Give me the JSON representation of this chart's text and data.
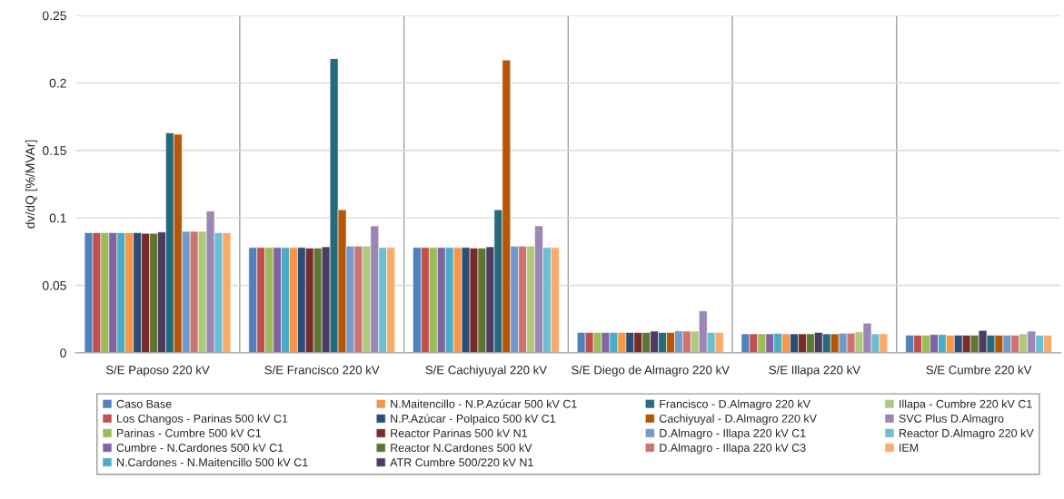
{
  "chart_data": {
    "type": "bar",
    "ylabel": "dv/dQ [%/MVAr]",
    "categories": [
      "S/E Paposo 220 kV",
      "S/E Francisco 220 kV",
      "S/E Cachiyuyal 220 kV",
      "S/E Diego de Almagro 220 kV",
      "S/E Illapa 220 kV",
      "S/E Cumbre 220 kV"
    ],
    "ylim": [
      0,
      0.25
    ],
    "yticks": [
      0,
      0.05,
      0.1,
      0.15,
      0.2,
      0.25
    ],
    "grid": true,
    "legend": "bottom",
    "series": [
      {
        "name": "Caso Base",
        "color": "#4f81bd",
        "values": [
          0.089,
          0.078,
          0.078,
          0.015,
          0.014,
          0.013
        ]
      },
      {
        "name": "Los Changos - Parinas 500 kV C1",
        "color": "#c0504d",
        "values": [
          0.089,
          0.078,
          0.078,
          0.015,
          0.014,
          0.013
        ]
      },
      {
        "name": "Parinas - Cumbre 500 kV C1",
        "color": "#9bbb59",
        "values": [
          0.089,
          0.078,
          0.078,
          0.015,
          0.014,
          0.013
        ]
      },
      {
        "name": "Cumbre - N.Cardones 500 kV C1",
        "color": "#8064a2",
        "values": [
          0.089,
          0.078,
          0.078,
          0.015,
          0.014,
          0.0135
        ]
      },
      {
        "name": "N.Cardones - N.Maitencillo 500 kV C1",
        "color": "#4bacc6",
        "values": [
          0.089,
          0.078,
          0.078,
          0.015,
          0.0143,
          0.0135
        ]
      },
      {
        "name": "N.Maitencillo - N.P.Azúcar 500 kV C1",
        "color": "#f79646",
        "values": [
          0.089,
          0.078,
          0.078,
          0.015,
          0.014,
          0.013
        ]
      },
      {
        "name": "N.P.Azúcar - Polpaico 500 kV C1",
        "color": "#2c4d75",
        "values": [
          0.089,
          0.078,
          0.078,
          0.015,
          0.014,
          0.013
        ]
      },
      {
        "name": "Reactor Parinas 500 kV N1",
        "color": "#772c2a",
        "values": [
          0.0885,
          0.0775,
          0.0775,
          0.015,
          0.014,
          0.013
        ]
      },
      {
        "name": "Reactor N.Cardones 500 kV",
        "color": "#5f7530",
        "values": [
          0.0885,
          0.0775,
          0.0775,
          0.015,
          0.014,
          0.013
        ]
      },
      {
        "name": "ATR Cumbre 500/220 kV N1",
        "color": "#4d3b62",
        "values": [
          0.0895,
          0.0785,
          0.0785,
          0.016,
          0.015,
          0.0165
        ]
      },
      {
        "name": "Francisco - D.Almagro 220 kV",
        "color": "#276a7c",
        "values": [
          0.163,
          0.218,
          0.106,
          0.015,
          0.014,
          0.013
        ]
      },
      {
        "name": "Cachiyuyal - D.Almagro 220 kV",
        "color": "#b65708",
        "values": [
          0.162,
          0.106,
          0.217,
          0.015,
          0.014,
          0.013
        ]
      },
      {
        "name": "D.Almagro - Illapa 220 kV C1",
        "color": "#729aca",
        "values": [
          0.09,
          0.079,
          0.079,
          0.0162,
          0.0145,
          0.013
        ]
      },
      {
        "name": "D.Almagro - Illapa 220 kV C3",
        "color": "#cd7371",
        "values": [
          0.09,
          0.079,
          0.079,
          0.016,
          0.0145,
          0.013
        ]
      },
      {
        "name": "Illapa - Cumbre 220 kV C1",
        "color": "#afc97a",
        "values": [
          0.09,
          0.079,
          0.079,
          0.016,
          0.0155,
          0.014
        ]
      },
      {
        "name": "SVC Plus D.Almagro",
        "color": "#9b87b5",
        "values": [
          0.105,
          0.094,
          0.094,
          0.031,
          0.022,
          0.016
        ]
      },
      {
        "name": "Reactor D.Almagro 220 kV",
        "color": "#6fbdd1",
        "values": [
          0.089,
          0.078,
          0.078,
          0.015,
          0.014,
          0.013
        ]
      },
      {
        "name": "IEM",
        "color": "#f9ab6b",
        "values": [
          0.089,
          0.078,
          0.078,
          0.015,
          0.014,
          0.013
        ]
      }
    ]
  }
}
